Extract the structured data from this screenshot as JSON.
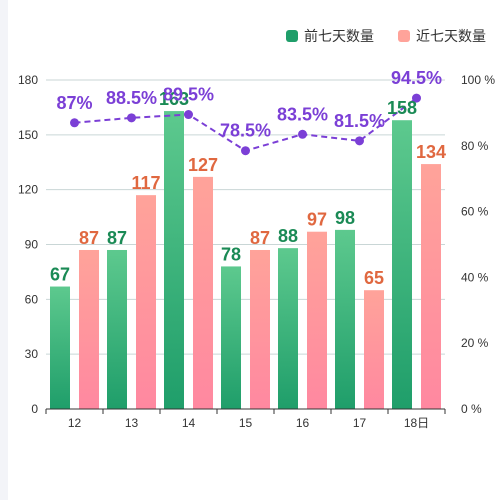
{
  "chart_data": {
    "type": "bar",
    "categories": [
      "12",
      "13",
      "14",
      "15",
      "16",
      "17",
      "18日"
    ],
    "series": [
      {
        "name": "前七天数量",
        "values": [
          67,
          87,
          163,
          78,
          88,
          98,
          158
        ]
      },
      {
        "name": "近七天数量",
        "values": [
          87,
          117,
          127,
          87,
          97,
          65,
          134
        ]
      }
    ],
    "line_series": {
      "values": [
        87,
        88.5,
        89.5,
        78.5,
        83.5,
        81.5,
        94.5
      ],
      "labels": [
        "87%",
        "88.5%",
        "89.5%",
        "78.5%",
        "83.5%",
        "81.5%",
        "94.5%"
      ],
      "axis": "right"
    },
    "yticks_left": [
      "0",
      "30",
      "60",
      "90",
      "120",
      "150",
      "180"
    ],
    "ylim": [
      0,
      180
    ],
    "yticks_right": [
      "0 %",
      "20 %",
      "40 %",
      "60 %",
      "80 %",
      "100 %"
    ],
    "ylim_right": [
      0,
      100
    ],
    "legend_position": "top-right",
    "grid": true,
    "colors": {
      "series1_top": "#5dc98e",
      "series1_bottom": "#1f9e6a",
      "series1_label": "#1a8a55",
      "series2_top": "#ffa39a",
      "series2_bottom": "#ff88a0",
      "series2_label": "#e06840",
      "line": "#7b3fd6",
      "grid": "#c9d6d6"
    }
  }
}
